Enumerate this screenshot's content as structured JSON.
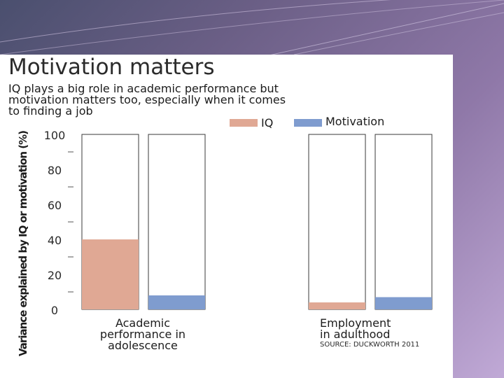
{
  "colors": {
    "iq": "#e0a894",
    "motivation": "#7f9ccf",
    "bar_frame": "#3a3a3a"
  },
  "chart_data": {
    "type": "bar",
    "title": "Motivation matters",
    "subtitle_lines": [
      "IQ plays a big role in academic performance but",
      "motivation matters too, especially when it comes",
      "to finding a job"
    ],
    "ylabel": "Variance explained by IQ or motivation (%)",
    "ylim": [
      0,
      100
    ],
    "yticks": [
      "0",
      "20",
      "40",
      "60",
      "80",
      "100"
    ],
    "legend": [
      "IQ",
      "Motivation"
    ],
    "legend_placement": "top-right",
    "categories": [
      {
        "lines": [
          "Academic",
          "performance in",
          "adolescence"
        ]
      },
      {
        "lines": [
          "Employment",
          "in adulthood"
        ]
      }
    ],
    "series": [
      {
        "name": "IQ",
        "values": [
          40,
          4
        ]
      },
      {
        "name": "Motivation",
        "values": [
          8,
          7
        ]
      }
    ],
    "source": "SOURCE: DUCKWORTH 2011"
  }
}
